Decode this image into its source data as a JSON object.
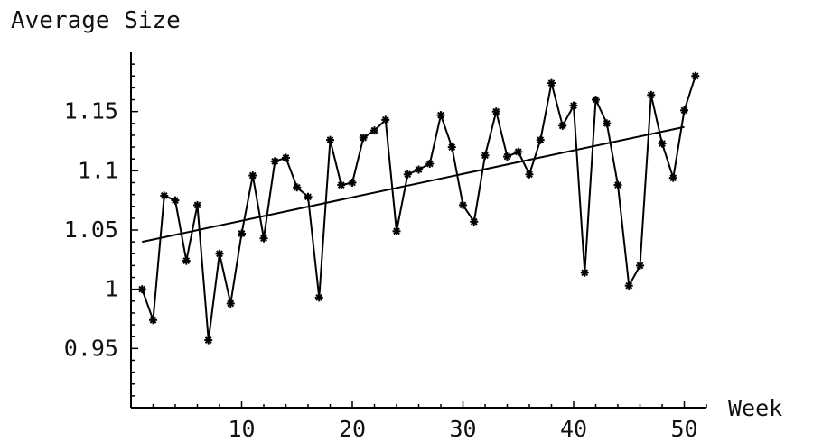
{
  "chart_data": {
    "type": "line",
    "ylabel": "Average Size",
    "xlabel": "Week",
    "xlim": [
      0,
      52
    ],
    "ylim": [
      0.9,
      1.2
    ],
    "x_ticks": [
      10,
      20,
      30,
      40,
      50
    ],
    "x_tick_labels": [
      "10",
      "20",
      "30",
      "40",
      "50"
    ],
    "y_ticks": [
      0.95,
      1,
      1.05,
      1.1,
      1.15
    ],
    "y_tick_labels": [
      "0.95",
      "1",
      "1.05",
      "1.1",
      "1.15"
    ],
    "grid": false,
    "legend": "none",
    "series": [
      {
        "style": "line-with-star-markers",
        "x": [
          1,
          2,
          3,
          4,
          5,
          6,
          7,
          8,
          9,
          10,
          11,
          12,
          13,
          14,
          15,
          16,
          17,
          18,
          19,
          20,
          21,
          22,
          23,
          24,
          25,
          26,
          27,
          28,
          29,
          30,
          31,
          32,
          33,
          34,
          35,
          36,
          37,
          38,
          39,
          40,
          41,
          42,
          43,
          44,
          45,
          46,
          47,
          48,
          49,
          50,
          51
        ],
        "values": [
          1.0,
          0.974,
          1.079,
          1.075,
          1.024,
          1.071,
          0.957,
          1.03,
          0.988,
          1.047,
          1.096,
          1.043,
          1.108,
          1.111,
          1.086,
          1.078,
          0.993,
          1.126,
          1.088,
          1.09,
          1.128,
          1.134,
          1.143,
          1.049,
          1.097,
          1.101,
          1.106,
          1.147,
          1.12,
          1.071,
          1.057,
          1.113,
          1.15,
          1.112,
          1.116,
          1.097,
          1.126,
          1.174,
          1.138,
          1.155,
          1.014,
          1.16,
          1.14,
          1.088,
          1.003,
          1.02,
          1.164,
          1.123,
          1.094,
          1.151,
          1.18
        ]
      },
      {
        "style": "straight-line",
        "x": [
          1,
          50
        ],
        "values": [
          1.04,
          1.137
        ]
      }
    ]
  }
}
